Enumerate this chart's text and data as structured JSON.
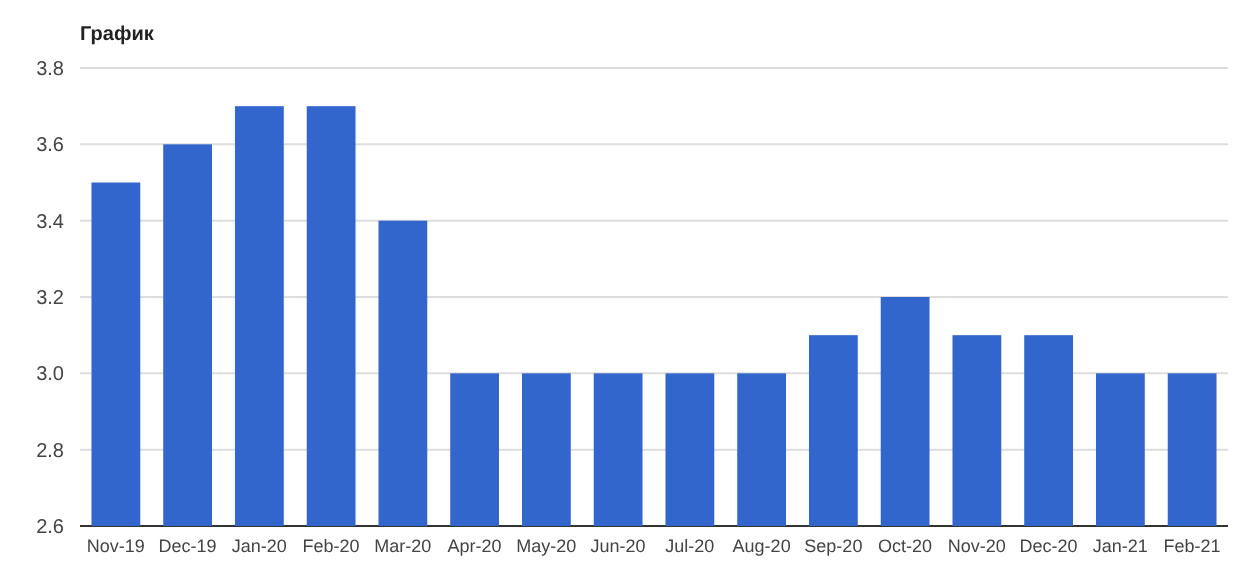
{
  "chart_data": {
    "type": "bar",
    "title": "График",
    "categories": [
      "Nov-19",
      "Dec-19",
      "Jan-20",
      "Feb-20",
      "Mar-20",
      "Apr-20",
      "May-20",
      "Jun-20",
      "Jul-20",
      "Aug-20",
      "Sep-20",
      "Oct-20",
      "Nov-20",
      "Dec-20",
      "Jan-21",
      "Feb-21"
    ],
    "values": [
      3.5,
      3.6,
      3.7,
      3.7,
      3.4,
      3.0,
      3.0,
      3.0,
      3.0,
      3.0,
      3.1,
      3.2,
      3.1,
      3.1,
      3.0,
      3.0
    ],
    "color": "#3366cc",
    "ylim": [
      2.6,
      3.8
    ],
    "yticks": [
      {
        "value": 2.6,
        "label": "2.6"
      },
      {
        "value": 2.8,
        "label": "2.8"
      },
      {
        "value": 3.0,
        "label": "3.0"
      },
      {
        "value": 3.2,
        "label": "3.2"
      },
      {
        "value": 3.4,
        "label": "3.4"
      },
      {
        "value": 3.6,
        "label": "3.6"
      },
      {
        "value": 3.8,
        "label": "3.8"
      }
    ],
    "grid": true
  }
}
